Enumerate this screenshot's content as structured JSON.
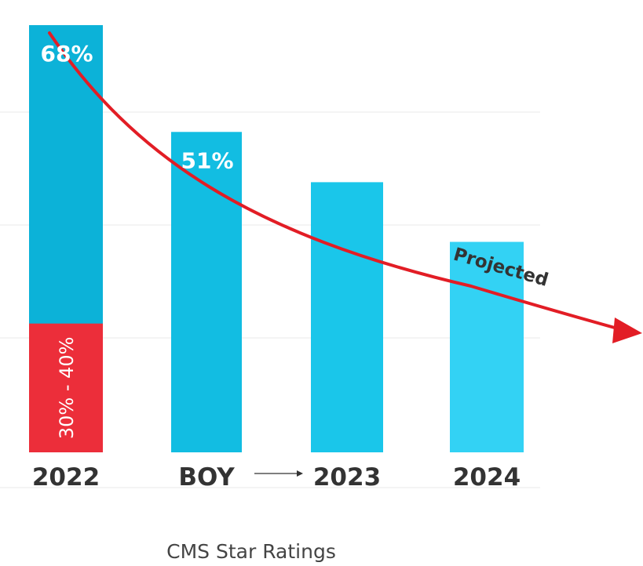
{
  "chart_data": {
    "type": "bar",
    "title": "",
    "xlabel": "CMS Star Ratings",
    "ylabel": "",
    "ylim": [
      0,
      72
    ],
    "grid": true,
    "categories": [
      "2022",
      "BOY",
      "2023",
      "2024"
    ],
    "transition_arrow": {
      "from": "BOY",
      "to": "2023"
    },
    "series": [
      {
        "values": [
          68,
          51,
          43,
          33.5
        ],
        "value_labels": [
          "68%",
          "51%",
          "",
          ""
        ]
      }
    ],
    "highlight_segment": {
      "category": "2022",
      "range": [
        0,
        20.5
      ],
      "label": "30% - 40%",
      "color": "#ec2e3a"
    },
    "bar_colors": [
      "#0cb2d8",
      "#12bde2",
      "#1ac6ea",
      "#33d2f4"
    ],
    "annotation": {
      "label": "Projected",
      "color": "#e21d25"
    }
  }
}
